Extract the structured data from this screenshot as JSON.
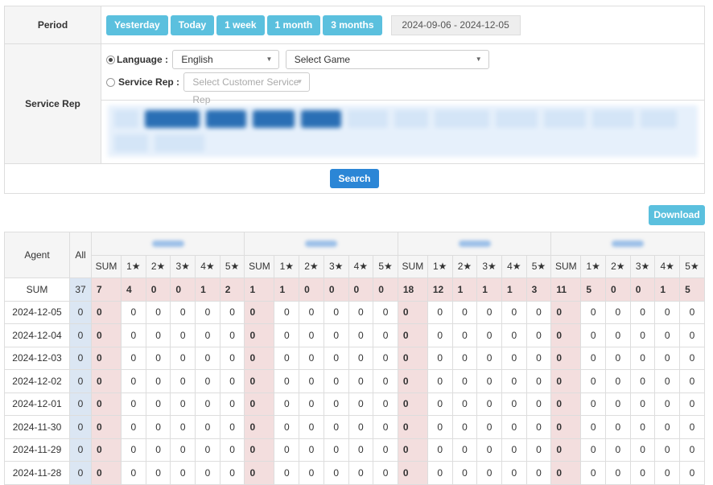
{
  "period": {
    "label": "Period",
    "buttons": [
      "Yesterday",
      "Today",
      "1 week",
      "1 month",
      "3 months"
    ],
    "date_range": "2024-09-06 - 2024-12-05"
  },
  "service_rep": {
    "label": "Service Rep",
    "language_label": "Language :",
    "language_value": "English",
    "game_placeholder": "Select Game",
    "rep_label": "Service Rep :",
    "rep_placeholder": "Select Customer Service Rep",
    "selected_radio": "language"
  },
  "search_label": "Search",
  "download_label": "Download",
  "table": {
    "agent_header": "Agent",
    "all_header": "All",
    "sub_headers": [
      "SUM",
      "1★",
      "2★",
      "3★",
      "4★",
      "5★"
    ],
    "group_count": 4,
    "sum_row": {
      "label": "SUM",
      "all": 37,
      "groups": [
        [
          7,
          4,
          0,
          0,
          1,
          2
        ],
        [
          1,
          1,
          0,
          0,
          0,
          0
        ],
        [
          18,
          12,
          1,
          1,
          1,
          3
        ],
        [
          11,
          5,
          0,
          0,
          1,
          5
        ]
      ]
    },
    "rows": [
      {
        "date": "2024-12-05",
        "all": 0,
        "groups": [
          [
            0,
            0,
            0,
            0,
            0,
            0
          ],
          [
            0,
            0,
            0,
            0,
            0,
            0
          ],
          [
            0,
            0,
            0,
            0,
            0,
            0
          ],
          [
            0,
            0,
            0,
            0,
            0,
            0
          ]
        ]
      },
      {
        "date": "2024-12-04",
        "all": 0,
        "groups": [
          [
            0,
            0,
            0,
            0,
            0,
            0
          ],
          [
            0,
            0,
            0,
            0,
            0,
            0
          ],
          [
            0,
            0,
            0,
            0,
            0,
            0
          ],
          [
            0,
            0,
            0,
            0,
            0,
            0
          ]
        ]
      },
      {
        "date": "2024-12-03",
        "all": 0,
        "groups": [
          [
            0,
            0,
            0,
            0,
            0,
            0
          ],
          [
            0,
            0,
            0,
            0,
            0,
            0
          ],
          [
            0,
            0,
            0,
            0,
            0,
            0
          ],
          [
            0,
            0,
            0,
            0,
            0,
            0
          ]
        ]
      },
      {
        "date": "2024-12-02",
        "all": 0,
        "groups": [
          [
            0,
            0,
            0,
            0,
            0,
            0
          ],
          [
            0,
            0,
            0,
            0,
            0,
            0
          ],
          [
            0,
            0,
            0,
            0,
            0,
            0
          ],
          [
            0,
            0,
            0,
            0,
            0,
            0
          ]
        ]
      },
      {
        "date": "2024-12-01",
        "all": 0,
        "groups": [
          [
            0,
            0,
            0,
            0,
            0,
            0
          ],
          [
            0,
            0,
            0,
            0,
            0,
            0
          ],
          [
            0,
            0,
            0,
            0,
            0,
            0
          ],
          [
            0,
            0,
            0,
            0,
            0,
            0
          ]
        ]
      },
      {
        "date": "2024-11-30",
        "all": 0,
        "groups": [
          [
            0,
            0,
            0,
            0,
            0,
            0
          ],
          [
            0,
            0,
            0,
            0,
            0,
            0
          ],
          [
            0,
            0,
            0,
            0,
            0,
            0
          ],
          [
            0,
            0,
            0,
            0,
            0,
            0
          ]
        ]
      },
      {
        "date": "2024-11-29",
        "all": 0,
        "groups": [
          [
            0,
            0,
            0,
            0,
            0,
            0
          ],
          [
            0,
            0,
            0,
            0,
            0,
            0
          ],
          [
            0,
            0,
            0,
            0,
            0,
            0
          ],
          [
            0,
            0,
            0,
            0,
            0,
            0
          ]
        ]
      },
      {
        "date": "2024-11-28",
        "all": 0,
        "groups": [
          [
            0,
            0,
            0,
            0,
            0,
            0
          ],
          [
            0,
            0,
            0,
            0,
            0,
            0
          ],
          [
            0,
            0,
            0,
            0,
            0,
            0
          ],
          [
            0,
            0,
            0,
            0,
            0,
            0
          ]
        ]
      }
    ]
  }
}
